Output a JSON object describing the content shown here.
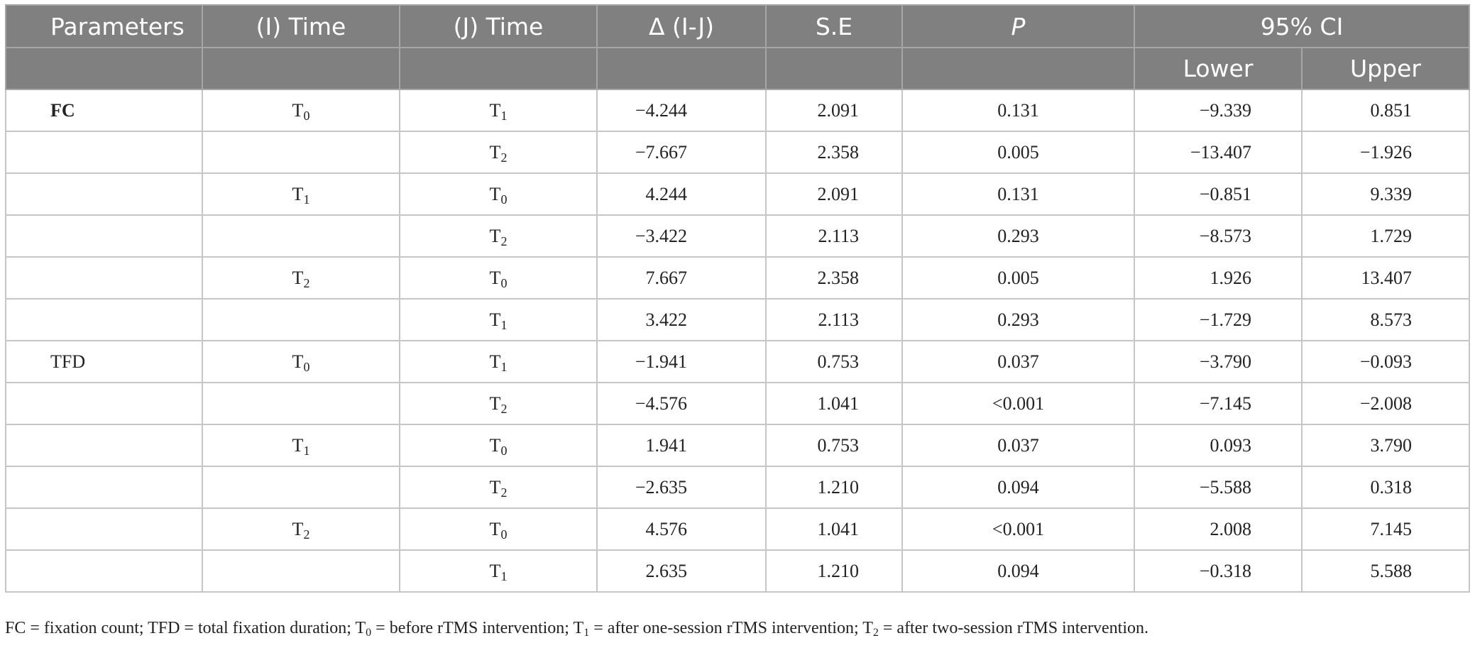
{
  "headers": {
    "parameters": "Parameters",
    "i_time": "(I) Time",
    "j_time": "(J) Time",
    "delta": "Δ (I-J)",
    "se": "S.E",
    "p": "P",
    "ci": "95% CI",
    "lower": "Lower",
    "upper": "Upper"
  },
  "rows": [
    {
      "param": "FC",
      "param_bold": true,
      "i_base": "T",
      "i_sub": "0",
      "j_base": "T",
      "j_sub": "1",
      "delta": "−4.244",
      "se": "2.091",
      "p": "0.131",
      "lower": "−9.339",
      "upper": "0.851"
    },
    {
      "param": "",
      "param_bold": false,
      "i_base": "",
      "i_sub": "",
      "j_base": "T",
      "j_sub": "2",
      "delta": "−7.667",
      "se": "2.358",
      "p": "0.005",
      "lower": "−13.407",
      "upper": "−1.926"
    },
    {
      "param": "",
      "param_bold": false,
      "i_base": "T",
      "i_sub": "1",
      "j_base": "T",
      "j_sub": "0",
      "delta": "4.244",
      "se": "2.091",
      "p": "0.131",
      "lower": "−0.851",
      "upper": "9.339"
    },
    {
      "param": "",
      "param_bold": false,
      "i_base": "",
      "i_sub": "",
      "j_base": "T",
      "j_sub": "2",
      "delta": "−3.422",
      "se": "2.113",
      "p": "0.293",
      "lower": "−8.573",
      "upper": "1.729"
    },
    {
      "param": "",
      "param_bold": false,
      "i_base": "T",
      "i_sub": "2",
      "j_base": "T",
      "j_sub": "0",
      "delta": "7.667",
      "se": "2.358",
      "p": "0.005",
      "lower": "1.926",
      "upper": "13.407"
    },
    {
      "param": "",
      "param_bold": false,
      "i_base": "",
      "i_sub": "",
      "j_base": "T",
      "j_sub": "1",
      "delta": "3.422",
      "se": "2.113",
      "p": "0.293",
      "lower": "−1.729",
      "upper": "8.573"
    },
    {
      "param": "TFD",
      "param_bold": false,
      "i_base": "T",
      "i_sub": "0",
      "j_base": "T",
      "j_sub": "1",
      "delta": "−1.941",
      "se": "0.753",
      "p": "0.037",
      "lower": "−3.790",
      "upper": "−0.093"
    },
    {
      "param": "",
      "param_bold": false,
      "i_base": "",
      "i_sub": "",
      "j_base": "T",
      "j_sub": "2",
      "delta": "−4.576",
      "se": "1.041",
      "p": "<0.001",
      "lower": "−7.145",
      "upper": "−2.008"
    },
    {
      "param": "",
      "param_bold": false,
      "i_base": "T",
      "i_sub": "1",
      "j_base": "T",
      "j_sub": "0",
      "delta": "1.941",
      "se": "0.753",
      "p": "0.037",
      "lower": "0.093",
      "upper": "3.790"
    },
    {
      "param": "",
      "param_bold": false,
      "i_base": "",
      "i_sub": "",
      "j_base": "T",
      "j_sub": "2",
      "delta": "−2.635",
      "se": "1.210",
      "p": "0.094",
      "lower": "−5.588",
      "upper": "0.318"
    },
    {
      "param": "",
      "param_bold": false,
      "i_base": "T",
      "i_sub": "2",
      "j_base": "T",
      "j_sub": "0",
      "delta": "4.576",
      "se": "1.041",
      "p": "<0.001",
      "lower": "2.008",
      "upper": "7.145"
    },
    {
      "param": "",
      "param_bold": false,
      "i_base": "",
      "i_sub": "",
      "j_base": "T",
      "j_sub": "1",
      "delta": "2.635",
      "se": "1.210",
      "p": "0.094",
      "lower": "−0.318",
      "upper": "5.588"
    }
  ],
  "footnote": {
    "part1": "FC = fixation count; TFD = total fixation duration; T",
    "sub0": "0",
    "part2": " = before rTMS intervention; T",
    "sub1": "1",
    "part3": " = after one-session rTMS intervention; T",
    "sub2": "2",
    "part4": " = after two-session rTMS intervention."
  }
}
